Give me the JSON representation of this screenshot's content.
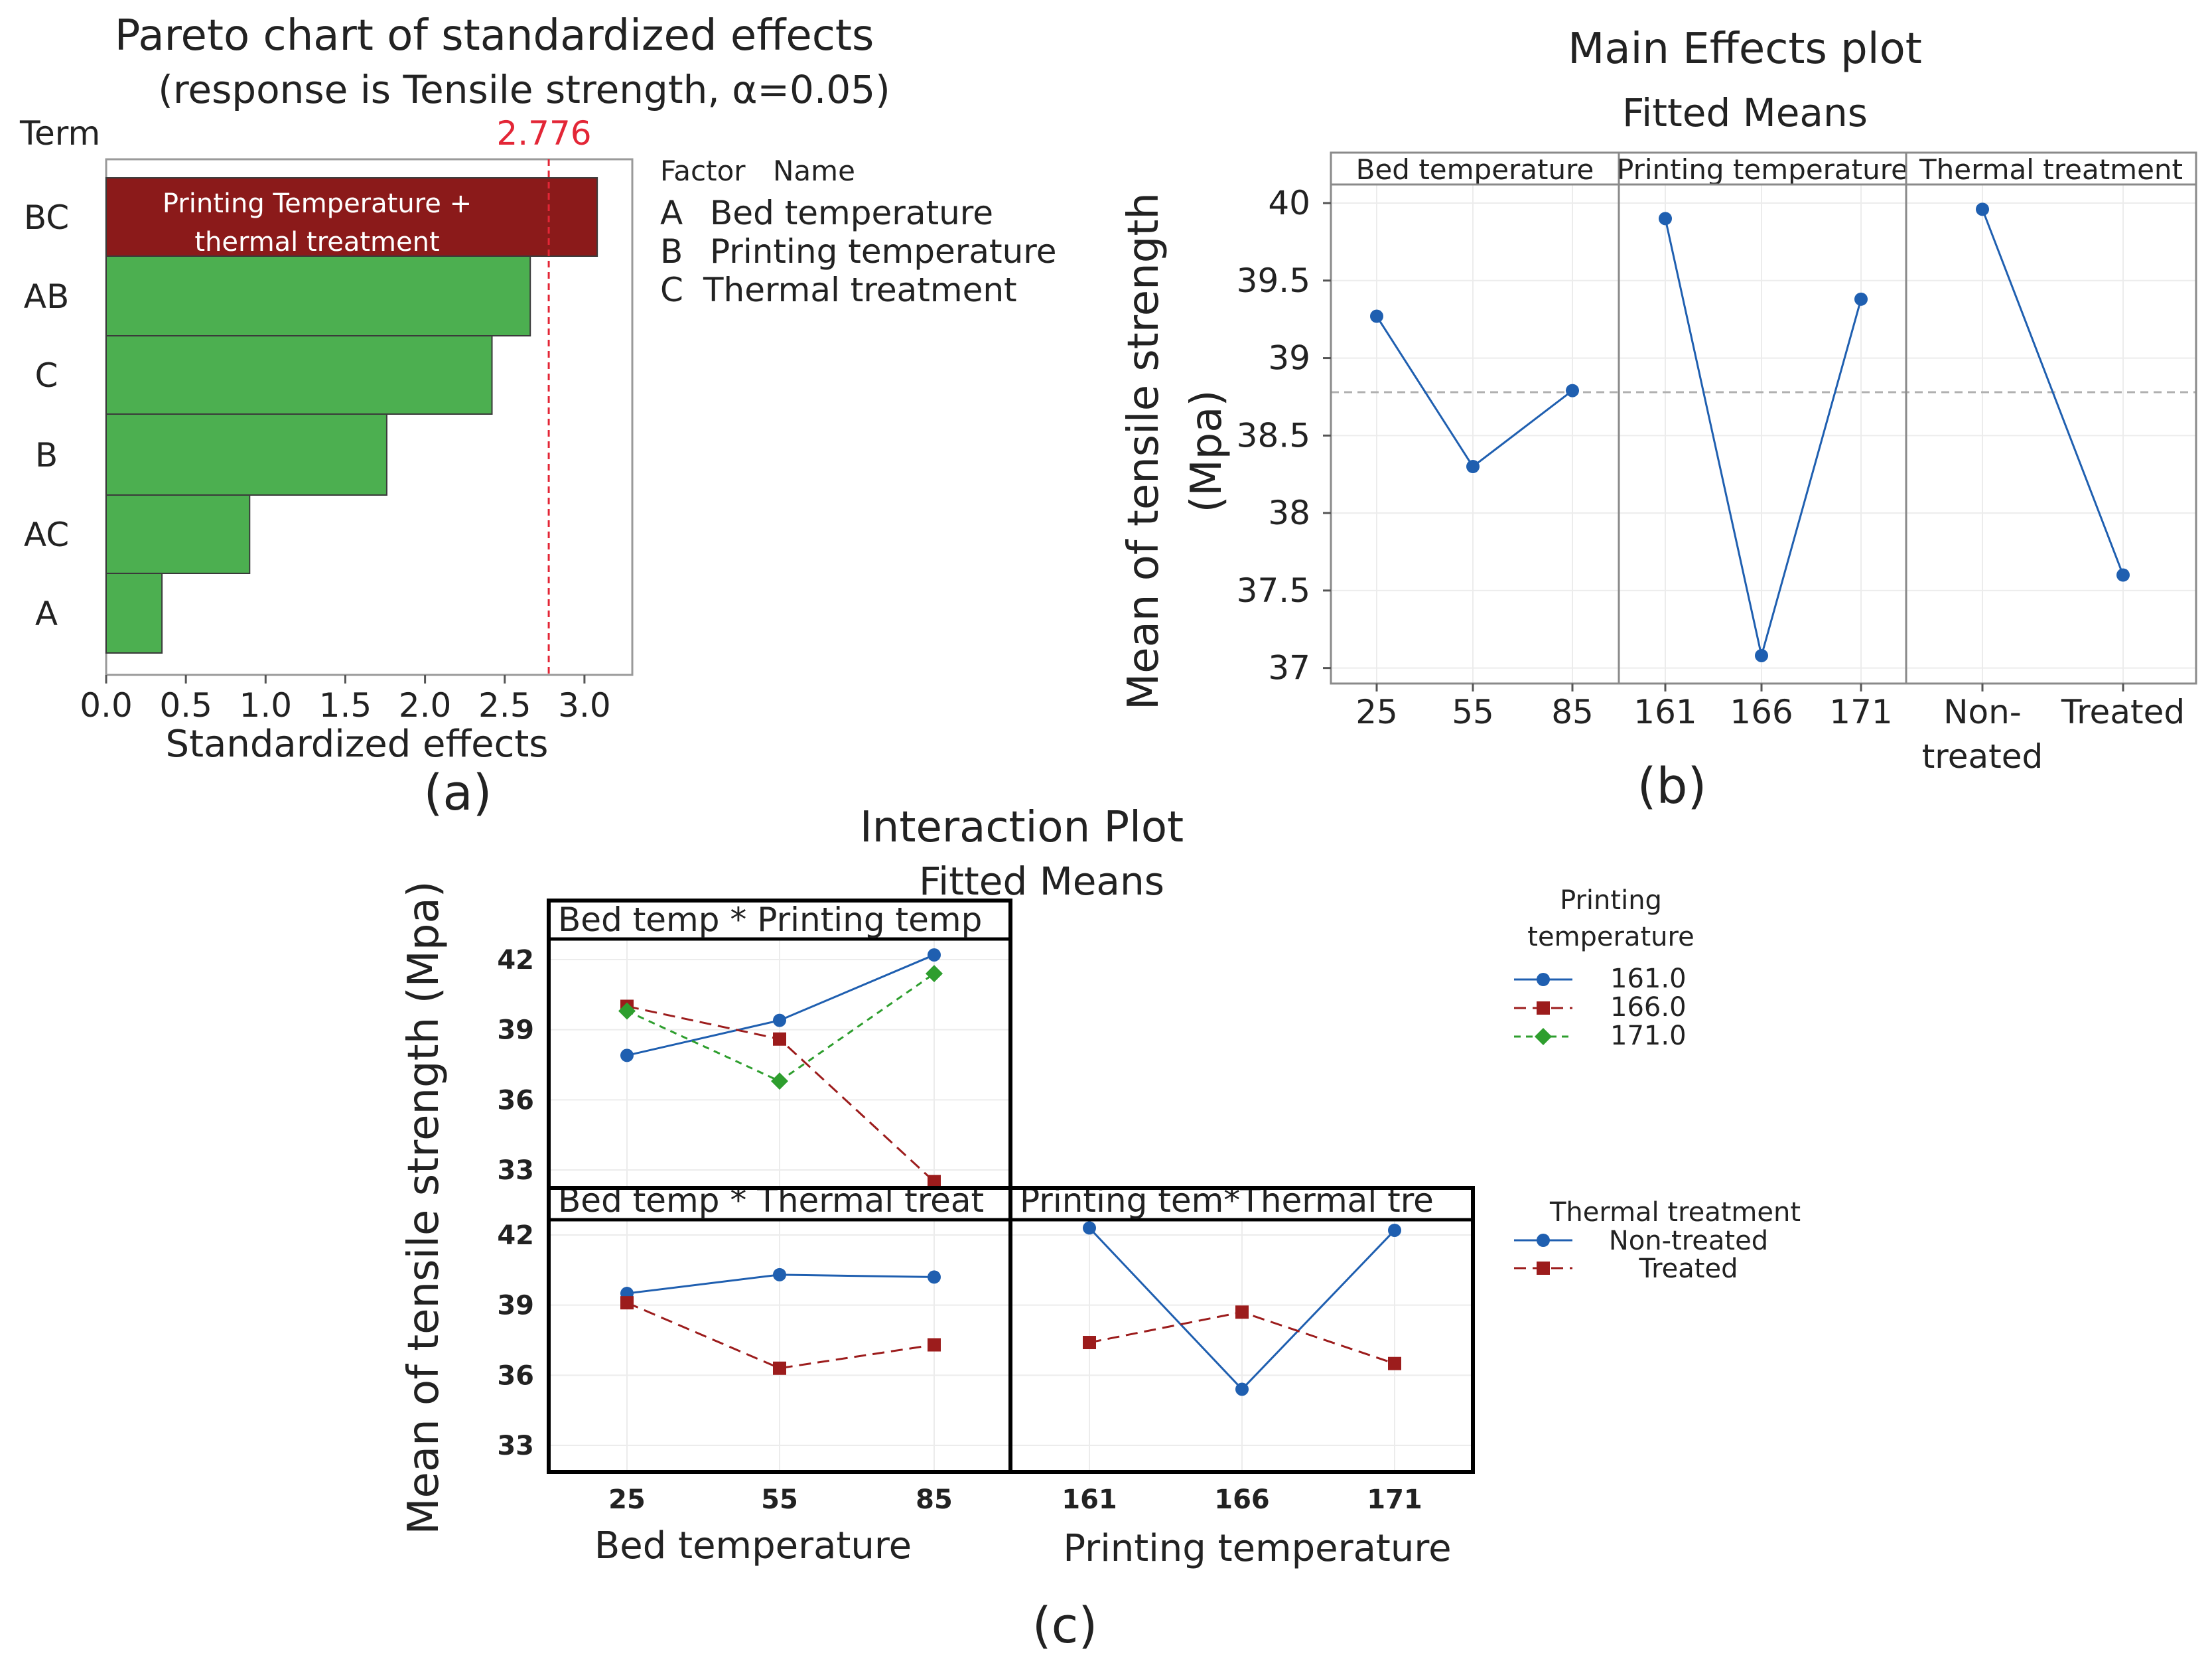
{
  "colors": {
    "bar_green": "#4caf50",
    "bar_red": "#8b1a1a",
    "ref_red": "#e32636",
    "series_blue": "#1f5fb0",
    "series_red": "#9c1c1c",
    "series_green": "#2e9e2e",
    "mean_line": "#b0b0b0"
  },
  "panel_a": {
    "title": "Pareto chart of standardized effects",
    "subtitle": "(response is Tensile strength, α=0.05)",
    "term_header": "Term",
    "ref_label": "2.776",
    "bar_annotation_1": "Printing Temperature +",
    "bar_annotation_2": "thermal treatment",
    "legend_header_factor": "Factor",
    "legend_header_name": "Name",
    "legend_rows": [
      {
        "factor": "A",
        "name": "Bed temperature"
      },
      {
        "factor": "B",
        "name": "Printing temperature"
      },
      {
        "factor": "C",
        "name": "Thermal treatment"
      }
    ],
    "caption": "(a)"
  },
  "panel_b": {
    "title": "Main Effects plot",
    "subtitle": "Fitted Means",
    "caption": "(b)"
  },
  "panel_c": {
    "title": "Interaction Plot",
    "subtitle": "Fitted Means",
    "caption": "(c)",
    "legend1_title_1": "Printing",
    "legend1_title_2": "temperature",
    "legend1_items": [
      "161.0",
      "166.0",
      "171.0"
    ],
    "legend2_title": "Thermal treatment",
    "legend2_items": [
      "Non-treated",
      "Treated"
    ]
  },
  "chart_data": [
    {
      "type": "bar",
      "orientation": "horizontal",
      "title": "Pareto chart of standardized effects",
      "subtitle": "(response is Tensile strength, α=0.05)",
      "categories": [
        "BC",
        "AB",
        "C",
        "B",
        "AC",
        "A"
      ],
      "values": [
        3.08,
        2.66,
        2.42,
        1.76,
        0.9,
        0.35
      ],
      "xlabel": "Standardized effects",
      "ylabel": "Term",
      "xlim": [
        0,
        3.3
      ],
      "xticks": [
        0.0,
        0.5,
        1.0,
        1.5,
        2.0,
        2.5,
        3.0
      ],
      "xtick_labels": [
        "0.0",
        "0.5",
        "1.0",
        "1.5",
        "2.0",
        "2.5",
        "3.0"
      ],
      "reference_line": 2.776,
      "reference_label": "2.776"
    },
    {
      "type": "line",
      "title": "Main Effects plot",
      "subtitle": "Fitted Means",
      "ylabel_1": "Mean of tensile strength",
      "ylabel_2": "(Mpa)",
      "ylim": [
        36.9,
        40.12
      ],
      "yticks": [
        37,
        37.5,
        38,
        38.5,
        39,
        39.5,
        40
      ],
      "ytick_labels": [
        "37",
        "37.5",
        "38",
        "38.5",
        "39",
        "39.5",
        "40"
      ],
      "overall_mean": 38.78,
      "panels": [
        {
          "name": "Bed temperature",
          "x": [
            "25",
            "55",
            "85"
          ],
          "values": [
            39.27,
            38.3,
            38.79
          ]
        },
        {
          "name": "Printing temperature",
          "x": [
            "161",
            "166",
            "171"
          ],
          "values": [
            39.9,
            37.08,
            39.38
          ]
        },
        {
          "name": "Thermal treatment",
          "x": [
            "Non-",
            "Treated"
          ],
          "x_second_line": [
            "treated",
            ""
          ],
          "values": [
            39.96,
            37.6
          ]
        }
      ]
    },
    {
      "type": "line",
      "title": "Interaction Plot",
      "subtitle": "Fitted Means",
      "ylabel": "Mean of tensile strength (Mpa)",
      "ylim": [
        31.8,
        43.1
      ],
      "yticks": [
        33,
        36,
        39,
        42
      ],
      "ytick_labels": [
        "33",
        "36",
        "39",
        "42"
      ],
      "panels": [
        {
          "name": "Bed temp * Printing temp",
          "x": [
            "25",
            "55",
            "85"
          ],
          "legend": "Printing temperature",
          "series": [
            {
              "name": "161.0",
              "values": [
                37.9,
                39.4,
                42.2
              ]
            },
            {
              "name": "166.0",
              "values": [
                40.0,
                38.6,
                32.5
              ]
            },
            {
              "name": "171.0",
              "values": [
                39.8,
                36.8,
                41.4
              ]
            }
          ]
        },
        {
          "name": "Bed temp * Thermal treat",
          "x": [
            "25",
            "55",
            "85"
          ],
          "xlabel": "Bed temperature",
          "legend": "Thermal treatment",
          "series": [
            {
              "name": "Non-treated",
              "values": [
                39.5,
                40.3,
                40.2
              ]
            },
            {
              "name": "Treated",
              "values": [
                39.1,
                36.3,
                37.3
              ]
            }
          ]
        },
        {
          "name": "Printing tem*Thermal tre",
          "x": [
            "161",
            "166",
            "171"
          ],
          "xlabel": "Printing temperature",
          "legend": "Thermal treatment",
          "series": [
            {
              "name": "Non-treated",
              "values": [
                42.3,
                35.4,
                42.2
              ]
            },
            {
              "name": "Treated",
              "values": [
                37.4,
                38.7,
                36.5
              ]
            }
          ]
        }
      ]
    }
  ]
}
